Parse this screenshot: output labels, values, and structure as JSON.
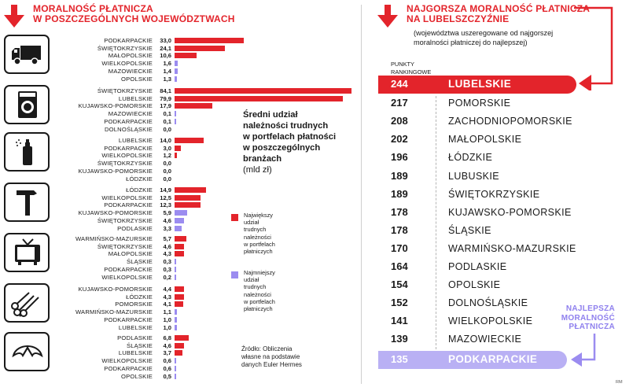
{
  "left_title": [
    "MORALNOŚĆ PŁATNICZA",
    "W POSZCZEGÓLNYCH WOJEWÓDZTWACH"
  ],
  "right_title": [
    "NAJGORSZA MORALNOŚĆ PŁATNICZA",
    "NA LUBELSZCZYŹNIE"
  ],
  "right_subtitle": [
    "(województwa uszeregowane od najgorszej",
    "moralności płatniczej do najlepszej)"
  ],
  "points_label": [
    "PUNKTY",
    "RANKINGOWE"
  ],
  "center_caption": [
    "Średni udział",
    "należności trudnych",
    "w portfelach płatności",
    "w poszczególnych",
    "branżach"
  ],
  "center_unit": "(mld zł)",
  "legend_max": [
    "Największy",
    "udział",
    "trudnych",
    "należności",
    "w portfelach",
    "płatniczych"
  ],
  "legend_min": [
    "Najmniejszy",
    "udział",
    "trudnych",
    "należności",
    "w portfelach",
    "płatniczych"
  ],
  "source": [
    "Źródło: Obliczenia",
    "własne na podstawie",
    "danych Euler Hermes"
  ],
  "best_label": [
    "NAJLEPSZA",
    "MORALNOŚĆ",
    "PŁATNICZA"
  ],
  "credit": "RM",
  "colors": {
    "red": "#e3242b",
    "purple": "#9b8cf0",
    "best_bg": "#b9b0f4",
    "dark": "#1a1a1a"
  },
  "chart_data": {
    "type": "bar",
    "orientation": "horizontal",
    "title": "Średni udział należności trudnych w portfelach płatności w poszczególnych branżach",
    "unit": "mld zł",
    "groups": [
      {
        "icon": "truck-icon",
        "items": [
          {
            "region": "PODKARPACKIE",
            "value": 33.0,
            "label": "33,0",
            "kind": "max"
          },
          {
            "region": "ŚWIĘTOKRZYSKIE",
            "value": 24.1,
            "label": "24,1",
            "kind": "max"
          },
          {
            "region": "MAŁOPOLSKIE",
            "value": 10.6,
            "label": "10,6",
            "kind": "max"
          },
          {
            "region": "WIELKOPOLSKIE",
            "value": 1.6,
            "label": "1,6",
            "kind": "min"
          },
          {
            "region": "MAZOWIECKIE",
            "value": 1.4,
            "label": "1,4",
            "kind": "min"
          },
          {
            "region": "OPOLSKIE",
            "value": 1.3,
            "label": "1,3",
            "kind": "min"
          }
        ]
      },
      {
        "icon": "washing-machine-icon",
        "items": [
          {
            "region": "ŚWIĘTOKRZYSKIE",
            "value": 84.1,
            "label": "84,1",
            "kind": "max"
          },
          {
            "region": "LUBELSKIE",
            "value": 79.9,
            "label": "79,9",
            "kind": "max"
          },
          {
            "region": "KUJAWSKO-POMORSKIE",
            "value": 17.9,
            "label": "17,9",
            "kind": "max"
          },
          {
            "region": "MAZOWIECKIE",
            "value": 0.1,
            "label": "0,1",
            "kind": "min"
          },
          {
            "region": "PODKARPACKIE",
            "value": 0.1,
            "label": "0,1",
            "kind": "min"
          },
          {
            "region": "DOLNOŚLĄSKIE",
            "value": 0.0,
            "label": "0,0",
            "kind": "min"
          }
        ]
      },
      {
        "icon": "spray-can-icon",
        "items": [
          {
            "region": "LUBELSKIE",
            "value": 14.0,
            "label": "14,0",
            "kind": "max"
          },
          {
            "region": "PODKARPACKIE",
            "value": 3.0,
            "label": "3,0",
            "kind": "max"
          },
          {
            "region": "WIELKOPOLSKIE",
            "value": 1.2,
            "label": "1,2",
            "kind": "max"
          },
          {
            "region": "ŚWIĘTOKRZYSKIE",
            "value": 0.0,
            "label": "0,0",
            "kind": "min"
          },
          {
            "region": "KUJAWSKO-POMORSKIE",
            "value": 0.0,
            "label": "0,0",
            "kind": "min"
          },
          {
            "region": "ŁÓDZKIE",
            "value": 0.0,
            "label": "0,0",
            "kind": "min"
          }
        ]
      },
      {
        "icon": "hammer-icon",
        "items": [
          {
            "region": "ŁÓDZKIE",
            "value": 14.9,
            "label": "14,9",
            "kind": "max"
          },
          {
            "region": "WIELKOPOLSKIE",
            "value": 12.5,
            "label": "12,5",
            "kind": "max"
          },
          {
            "region": "PODKARPACKIE",
            "value": 12.3,
            "label": "12,3",
            "kind": "max"
          },
          {
            "region": "KUJAWSKO-POMORSKIE",
            "value": 5.9,
            "label": "5,9",
            "kind": "min"
          },
          {
            "region": "ŚWIĘTOKRZYSKIE",
            "value": 4.6,
            "label": "4,6",
            "kind": "min"
          },
          {
            "region": "PODLASKIE",
            "value": 3.3,
            "label": "3,3",
            "kind": "min"
          }
        ]
      },
      {
        "icon": "tv-icon",
        "items": [
          {
            "region": "WARMIŃSKO-MAZURSKIE",
            "value": 5.7,
            "label": "5,7",
            "kind": "max"
          },
          {
            "region": "ŚWIĘTOKRZYSKIE",
            "value": 4.6,
            "label": "4,6",
            "kind": "max"
          },
          {
            "region": "MAŁOPOLSKIE",
            "value": 4.3,
            "label": "4,3",
            "kind": "max"
          },
          {
            "region": "ŚLĄSKIE",
            "value": 0.3,
            "label": "0,3",
            "kind": "min"
          },
          {
            "region": "PODKARPACKIE",
            "value": 0.3,
            "label": "0,3",
            "kind": "min"
          },
          {
            "region": "WIELKOPOLSKIE",
            "value": 0.2,
            "label": "0,2",
            "kind": "min"
          }
        ]
      },
      {
        "icon": "logs-icon",
        "items": [
          {
            "region": "KUJAWSKO-POMORSKIE",
            "value": 4.4,
            "label": "4,4",
            "kind": "max"
          },
          {
            "region": "ŁÓDZKIE",
            "value": 4.3,
            "label": "4,3",
            "kind": "max"
          },
          {
            "region": "POMORSKIE",
            "value": 4.1,
            "label": "4,1",
            "kind": "max"
          },
          {
            "region": "WARMIŃSKO-MAZURSKIE",
            "value": 1.1,
            "label": "1,1",
            "kind": "min"
          },
          {
            "region": "PODKARPACKIE",
            "value": 1.0,
            "label": "1,0",
            "kind": "min"
          },
          {
            "region": "LUBELSKIE",
            "value": 1.0,
            "label": "1,0",
            "kind": "min"
          }
        ]
      },
      {
        "icon": "croissant-icon",
        "items": [
          {
            "region": "PODLASKIE",
            "value": 6.8,
            "label": "6,8",
            "kind": "max"
          },
          {
            "region": "ŚLĄSKIE",
            "value": 4.6,
            "label": "4,6",
            "kind": "max"
          },
          {
            "region": "LUBELSKIE",
            "value": 3.7,
            "label": "3,7",
            "kind": "max"
          },
          {
            "region": "WIELKOPOLSKIE",
            "value": 0.6,
            "label": "0,6",
            "kind": "min"
          },
          {
            "region": "PODKARPACKIE",
            "value": 0.6,
            "label": "0,6",
            "kind": "min"
          },
          {
            "region": "OPOLSKIE",
            "value": 0.5,
            "label": "0,5",
            "kind": "min"
          }
        ]
      }
    ],
    "ranking": [
      {
        "points": 244,
        "region": "LUBELSKIE",
        "highlight": "worst"
      },
      {
        "points": 217,
        "region": "POMORSKIE"
      },
      {
        "points": 208,
        "region": "ZACHODNIOPOMORSKIE"
      },
      {
        "points": 202,
        "region": "MAŁOPOLSKIE"
      },
      {
        "points": 196,
        "region": "ŁÓDZKIE"
      },
      {
        "points": 189,
        "region": "LUBUSKIE"
      },
      {
        "points": 189,
        "region": "ŚWIĘTOKRZYSKIE"
      },
      {
        "points": 178,
        "region": "KUJAWSKO-POMORSKIE"
      },
      {
        "points": 178,
        "region": "ŚLĄSKIE"
      },
      {
        "points": 170,
        "region": "WARMIŃSKO-MAZURSKIE"
      },
      {
        "points": 164,
        "region": "PODLASKIE"
      },
      {
        "points": 154,
        "region": "OPOLSKIE"
      },
      {
        "points": 152,
        "region": "DOLNOŚLĄSKIE"
      },
      {
        "points": 141,
        "region": "WIELKOPOLSKIE"
      },
      {
        "points": 139,
        "region": "MAZOWIECKIE"
      },
      {
        "points": 135,
        "region": "PODKARPACKIE",
        "highlight": "best"
      }
    ]
  }
}
